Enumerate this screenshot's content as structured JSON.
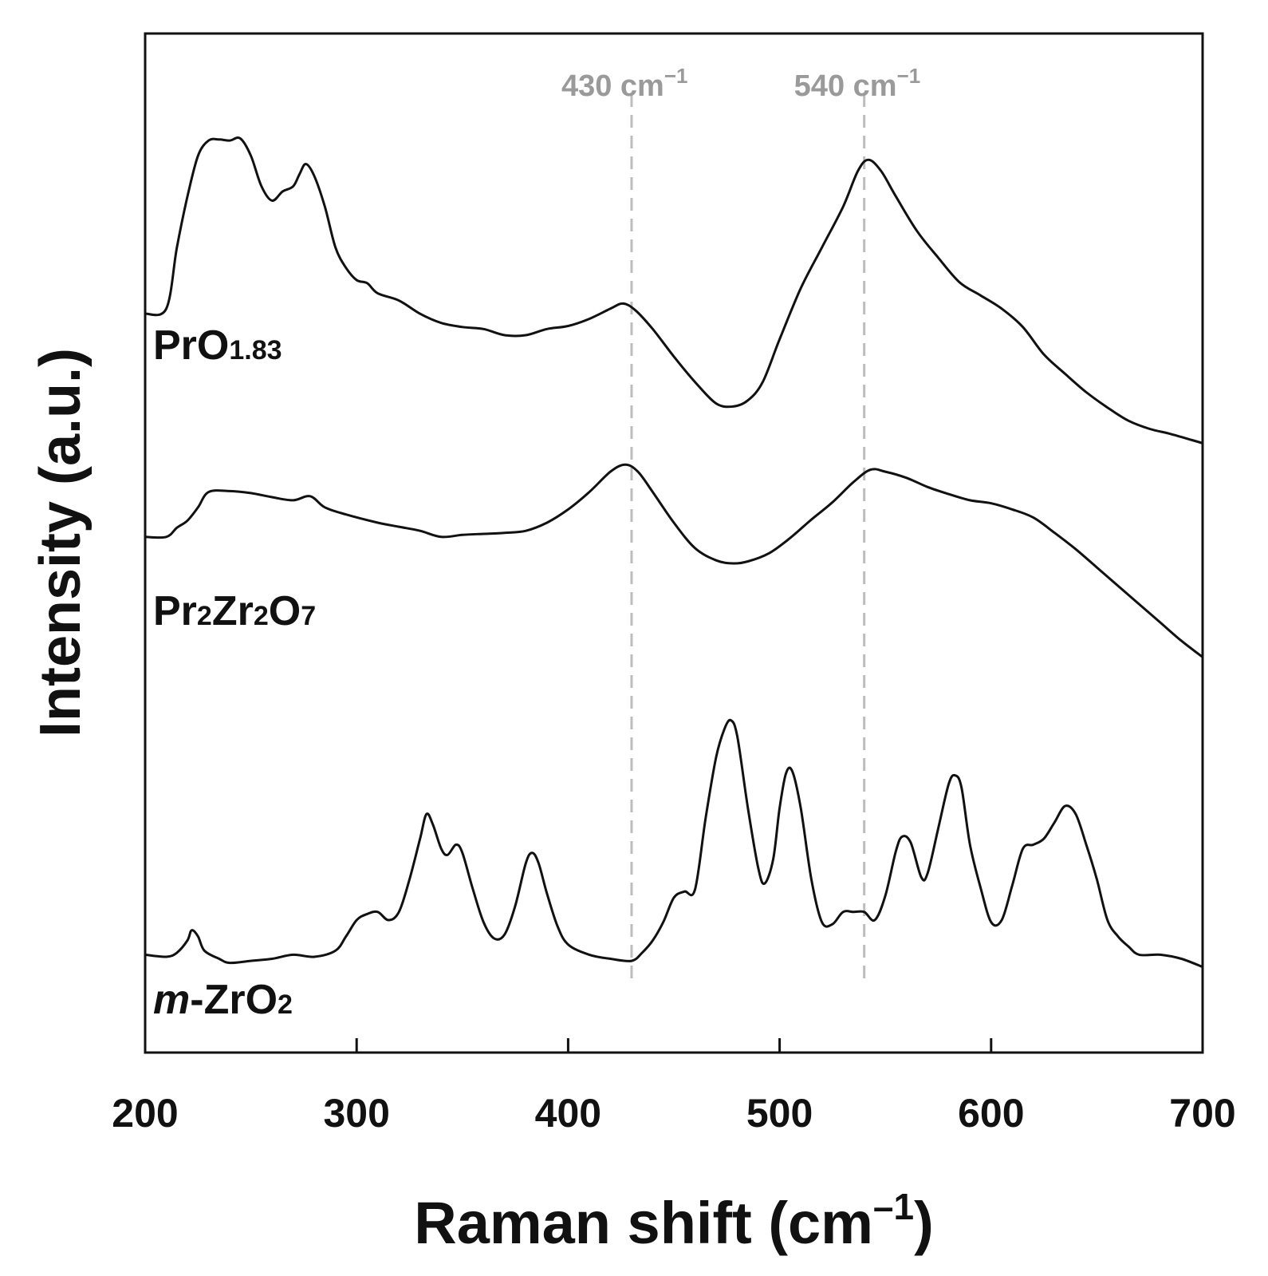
{
  "chart_data": {
    "type": "line",
    "title": "",
    "xlabel": "Raman shift (cm",
    "xlabel_sup": "–1",
    "xlabel_close": ")",
    "ylabel": "Intensity (a.u.)",
    "xlim": [
      200,
      700
    ],
    "ylim": [
      0,
      100
    ],
    "xticks": [
      200,
      300,
      400,
      500,
      600,
      700
    ],
    "reference_lines": [
      {
        "x": 430,
        "label": "430 cm",
        "sup": "−1"
      },
      {
        "x": 540,
        "label": "540 cm",
        "sup": "−1"
      }
    ],
    "series": [
      {
        "name": "PrO1.83",
        "label_main": "PrO",
        "label_sub": "1.83",
        "points": [
          [
            200,
            72.5
          ],
          [
            210,
            73
          ],
          [
            215,
            79
          ],
          [
            220,
            84
          ],
          [
            225,
            88
          ],
          [
            230,
            89.5
          ],
          [
            235,
            89.6
          ],
          [
            240,
            89.5
          ],
          [
            245,
            89.7
          ],
          [
            250,
            88
          ],
          [
            255,
            85
          ],
          [
            260,
            83.6
          ],
          [
            265,
            84.5
          ],
          [
            270,
            85
          ],
          [
            273,
            86.2
          ],
          [
            276,
            87.2
          ],
          [
            280,
            86
          ],
          [
            285,
            83
          ],
          [
            290,
            79
          ],
          [
            295,
            77
          ],
          [
            300,
            75.8
          ],
          [
            305,
            75.5
          ],
          [
            310,
            74.5
          ],
          [
            320,
            73.8
          ],
          [
            330,
            72.5
          ],
          [
            340,
            71.6
          ],
          [
            350,
            71.2
          ],
          [
            360,
            71
          ],
          [
            370,
            70.4
          ],
          [
            380,
            70.4
          ],
          [
            390,
            71
          ],
          [
            400,
            71.3
          ],
          [
            410,
            72
          ],
          [
            420,
            73
          ],
          [
            426,
            73.5
          ],
          [
            432,
            72.8
          ],
          [
            440,
            71
          ],
          [
            450,
            68.3
          ],
          [
            460,
            65.8
          ],
          [
            470,
            63.7
          ],
          [
            478,
            63.4
          ],
          [
            485,
            64
          ],
          [
            492,
            65.8
          ],
          [
            500,
            70
          ],
          [
            510,
            75
          ],
          [
            520,
            79
          ],
          [
            530,
            83
          ],
          [
            537,
            86.5
          ],
          [
            542,
            87.6
          ],
          [
            548,
            86.5
          ],
          [
            555,
            84
          ],
          [
            565,
            80.6
          ],
          [
            575,
            78
          ],
          [
            585,
            75.6
          ],
          [
            595,
            74.3
          ],
          [
            605,
            73
          ],
          [
            615,
            71.2
          ],
          [
            625,
            68.5
          ],
          [
            635,
            66.6
          ],
          [
            645,
            64.8
          ],
          [
            655,
            63.3
          ],
          [
            665,
            62
          ],
          [
            675,
            61.2
          ],
          [
            685,
            60.7
          ],
          [
            695,
            60.1
          ],
          [
            700,
            59.8
          ]
        ]
      },
      {
        "name": "Pr2Zr2O7",
        "label_parts": [
          [
            "Pr",
            ""
          ],
          [
            "2",
            "sub"
          ],
          [
            "Zr",
            ""
          ],
          [
            "2",
            "sub"
          ],
          [
            "O",
            ""
          ],
          [
            "7",
            "sub"
          ]
        ],
        "points": [
          [
            200,
            50.6
          ],
          [
            210,
            50.6
          ],
          [
            215,
            51.5
          ],
          [
            220,
            52.2
          ],
          [
            225,
            53.5
          ],
          [
            230,
            55
          ],
          [
            240,
            55.1
          ],
          [
            250,
            54.9
          ],
          [
            260,
            54.5
          ],
          [
            270,
            54.2
          ],
          [
            278,
            54.6
          ],
          [
            285,
            53.5
          ],
          [
            295,
            52.8
          ],
          [
            310,
            52
          ],
          [
            320,
            51.6
          ],
          [
            330,
            51.2
          ],
          [
            340,
            50.6
          ],
          [
            350,
            50.8
          ],
          [
            360,
            50.9
          ],
          [
            370,
            51
          ],
          [
            380,
            51.2
          ],
          [
            390,
            52
          ],
          [
            400,
            53.3
          ],
          [
            410,
            55
          ],
          [
            420,
            57
          ],
          [
            427,
            57.7
          ],
          [
            433,
            57
          ],
          [
            440,
            55
          ],
          [
            450,
            52
          ],
          [
            460,
            49.5
          ],
          [
            470,
            48.3
          ],
          [
            478,
            48
          ],
          [
            485,
            48.2
          ],
          [
            495,
            49
          ],
          [
            505,
            50.5
          ],
          [
            515,
            52.3
          ],
          [
            525,
            54
          ],
          [
            535,
            56
          ],
          [
            543,
            57.2
          ],
          [
            550,
            57
          ],
          [
            560,
            56.4
          ],
          [
            570,
            55.5
          ],
          [
            580,
            54.8
          ],
          [
            590,
            54.2
          ],
          [
            600,
            53.9
          ],
          [
            610,
            53.3
          ],
          [
            620,
            52.5
          ],
          [
            630,
            51
          ],
          [
            640,
            49.4
          ],
          [
            650,
            47.6
          ],
          [
            660,
            45.8
          ],
          [
            670,
            44
          ],
          [
            680,
            42.2
          ],
          [
            690,
            40.4
          ],
          [
            700,
            38.8
          ]
        ]
      },
      {
        "name": "m-ZrO2",
        "label_italic": "m",
        "label_rest": "-ZrO",
        "label_sub": "2",
        "points": [
          [
            200,
            9.6
          ],
          [
            210,
            9.4
          ],
          [
            215,
            9.8
          ],
          [
            220,
            11
          ],
          [
            222,
            12
          ],
          [
            225,
            11.4
          ],
          [
            228,
            10
          ],
          [
            235,
            9.2
          ],
          [
            240,
            8.8
          ],
          [
            250,
            9
          ],
          [
            260,
            9.2
          ],
          [
            270,
            9.6
          ],
          [
            280,
            9.4
          ],
          [
            290,
            10
          ],
          [
            295,
            11.4
          ],
          [
            300,
            13
          ],
          [
            305,
            13.6
          ],
          [
            310,
            13.8
          ],
          [
            315,
            13
          ],
          [
            320,
            13.8
          ],
          [
            325,
            17
          ],
          [
            330,
            21
          ],
          [
            333,
            23.4
          ],
          [
            336,
            22.4
          ],
          [
            340,
            20
          ],
          [
            343,
            19.4
          ],
          [
            347,
            20.4
          ],
          [
            350,
            19.6
          ],
          [
            355,
            16
          ],
          [
            360,
            12.8
          ],
          [
            365,
            11.2
          ],
          [
            370,
            11.6
          ],
          [
            375,
            14.4
          ],
          [
            380,
            18.6
          ],
          [
            383,
            19.6
          ],
          [
            386,
            18.6
          ],
          [
            390,
            15.6
          ],
          [
            395,
            12.4
          ],
          [
            400,
            10.6
          ],
          [
            410,
            9.6
          ],
          [
            420,
            9.2
          ],
          [
            430,
            9
          ],
          [
            435,
            9.8
          ],
          [
            440,
            11
          ],
          [
            445,
            12.8
          ],
          [
            450,
            15.2
          ],
          [
            455,
            15.8
          ],
          [
            460,
            16
          ],
          [
            465,
            23
          ],
          [
            470,
            29
          ],
          [
            474,
            31.8
          ],
          [
            477,
            32.6
          ],
          [
            480,
            31
          ],
          [
            485,
            24
          ],
          [
            490,
            18
          ],
          [
            493,
            16.6
          ],
          [
            497,
            19
          ],
          [
            500,
            24
          ],
          [
            503,
            27.4
          ],
          [
            506,
            27.6
          ],
          [
            510,
            24
          ],
          [
            515,
            17
          ],
          [
            520,
            12.8
          ],
          [
            525,
            12.6
          ],
          [
            530,
            13.8
          ],
          [
            535,
            13.8
          ],
          [
            540,
            13.8
          ],
          [
            545,
            13
          ],
          [
            550,
            15.4
          ],
          [
            555,
            19.8
          ],
          [
            558,
            21.2
          ],
          [
            562,
            20.6
          ],
          [
            567,
            17.2
          ],
          [
            570,
            17.6
          ],
          [
            575,
            22
          ],
          [
            580,
            26.4
          ],
          [
            583,
            27.2
          ],
          [
            586,
            26
          ],
          [
            590,
            20.4
          ],
          [
            595,
            16.2
          ],
          [
            600,
            12.8
          ],
          [
            605,
            13
          ],
          [
            610,
            16.4
          ],
          [
            615,
            20
          ],
          [
            620,
            20.4
          ],
          [
            625,
            21
          ],
          [
            630,
            22.6
          ],
          [
            635,
            24.2
          ],
          [
            640,
            23.4
          ],
          [
            645,
            20.4
          ],
          [
            650,
            17
          ],
          [
            655,
            13
          ],
          [
            660,
            11.4
          ],
          [
            665,
            10.4
          ],
          [
            670,
            9.6
          ],
          [
            680,
            9.6
          ],
          [
            690,
            9.2
          ],
          [
            700,
            8.4
          ]
        ]
      }
    ]
  }
}
